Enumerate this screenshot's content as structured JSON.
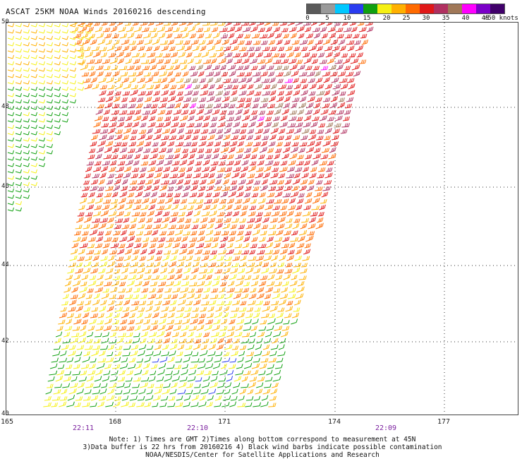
{
  "title": "ASCAT 25KM NOAA Winds 20160216 descending",
  "scale": {
    "unit_label": ">50 knots",
    "ticks": [
      "0",
      "5",
      "10",
      "15",
      "20",
      "25",
      "30",
      "35",
      "40",
      "45"
    ],
    "colors": [
      "#5a5a5a",
      "#9a9a9a",
      "#00c8ff",
      "#2a3cf0",
      "#10a010",
      "#f5f014",
      "#ffb000",
      "#ff6a00",
      "#e01818",
      "#b03060",
      "#a07858",
      "#ff00ff",
      "#7a00c8",
      "#40006a"
    ]
  },
  "map": {
    "lat_labels": [
      "50",
      "48",
      "46",
      "44",
      "42",
      "40"
    ],
    "lon_labels": [
      "165",
      "168",
      "171",
      "174",
      "177"
    ],
    "time_labels": [
      "22:11",
      "22:10",
      "22:09"
    ]
  },
  "notes": {
    "line1": "Note: 1) Times are GMT 2)Times along bottom correspond to measurement at 45N",
    "line2": "3)Data buffer is 22 hrs from 20160216 4) Black wind barbs indicate possible contamination",
    "line3": "NOAA/NESDIS/Center for Satellite Applications and Research"
  }
}
